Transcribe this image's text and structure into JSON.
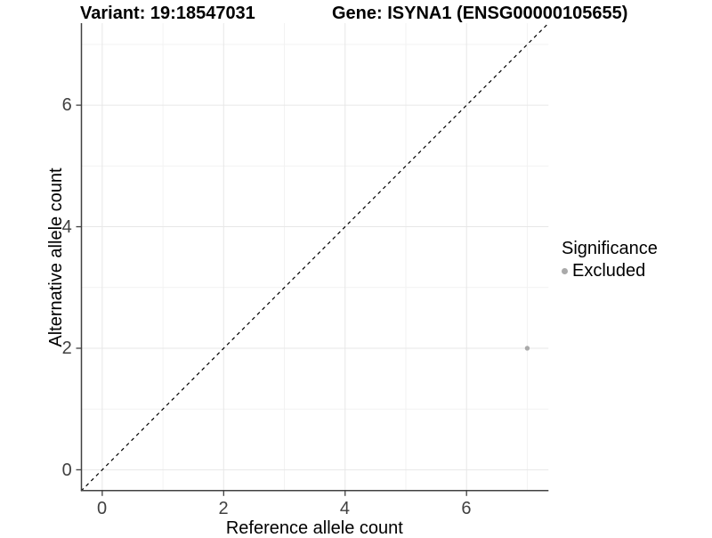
{
  "chart_data": {
    "type": "scatter",
    "title_left": "Variant: 19:18547031",
    "title_right": "Gene: ISYNA1 (ENSG00000105655)",
    "xlabel": "Reference allele count",
    "ylabel": "Alternative allele count",
    "xlim": [
      -0.35,
      7.35
    ],
    "ylim": [
      -0.35,
      7.35
    ],
    "x_ticks": [
      0,
      2,
      4,
      6
    ],
    "y_ticks": [
      0,
      2,
      4,
      6
    ],
    "x_minor": [
      1,
      3,
      5,
      7
    ],
    "y_minor": [
      1,
      3,
      5,
      7
    ],
    "grid": true,
    "series": [
      {
        "name": "Excluded",
        "color": "#aaaaaa",
        "points": [
          {
            "x": 7,
            "y": 2
          }
        ]
      }
    ],
    "reference_line": {
      "type": "identity",
      "slope": 1,
      "intercept": 0,
      "style": "dashed",
      "color": "#000000"
    },
    "legend": {
      "title": "Significance",
      "position": "right",
      "items": [
        {
          "label": "Excluded",
          "color": "#aaaaaa",
          "marker": "circle"
        }
      ]
    },
    "colors": {
      "axis_line": "#404040",
      "tick_mark": "#404040",
      "grid_major": "#e7e7e7",
      "grid_minor": "#f2f2f2",
      "panel_background": "#ffffff"
    }
  }
}
